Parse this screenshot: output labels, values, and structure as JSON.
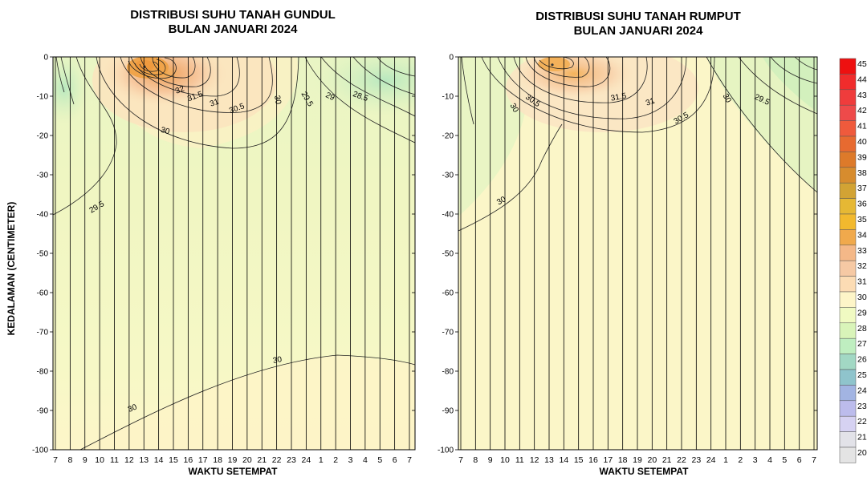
{
  "chart_data": [
    {
      "type": "heatmap",
      "title": "DISTRIBUSI SUHU TANAH GUNDUL",
      "subtitle": "BULAN JANUARI 2024",
      "xlabel": "WAKTU SETEMPAT",
      "ylabel": "KEDALAMAN (CENTIMETER)",
      "x_ticks": [
        "7",
        "8",
        "9",
        "10",
        "11",
        "12",
        "13",
        "14",
        "15",
        "16",
        "17",
        "18",
        "19",
        "20",
        "21",
        "22",
        "23",
        "24",
        "1",
        "2",
        "3",
        "4",
        "5",
        "6",
        "7"
      ],
      "y_ticks": [
        0,
        -10,
        -20,
        -30,
        -40,
        -50,
        -60,
        -70,
        -80,
        -90,
        -100
      ],
      "ylim": [
        -100,
        0
      ],
      "contour_labels": [
        "32",
        "31.5",
        "31",
        "30.5",
        "30",
        "30",
        "29.5",
        "29",
        "28.5",
        "29.5",
        "30",
        "30"
      ],
      "hotspot": {
        "hour": "13",
        "depth": -2.5,
        "value": 35
      }
    },
    {
      "type": "heatmap",
      "title": "DISTRIBUSI SUHU TANAH RUMPUT",
      "subtitle": "BULAN JANUARI 2024",
      "xlabel": "WAKTU SETEMPAT",
      "x_ticks": [
        "7",
        "8",
        "9",
        "10",
        "11",
        "12",
        "13",
        "14",
        "15",
        "16",
        "17",
        "18",
        "19",
        "20",
        "21",
        "22",
        "23",
        "24",
        "1",
        "2",
        "3",
        "4",
        "5",
        "6",
        "7"
      ],
      "y_ticks": [
        0,
        -10,
        -20,
        -30,
        -40,
        -50,
        -60,
        -70,
        -80,
        -90,
        -100
      ],
      "ylim": [
        -100,
        0
      ],
      "contour_labels": [
        "30",
        "30.5",
        "31.5",
        "31",
        "30.5",
        "30",
        "29.5",
        "30"
      ],
      "hotspot": {
        "hour": "13.5",
        "depth": -2,
        "value": 33.5
      }
    }
  ],
  "colorbar": {
    "ticks": [
      "45",
      "44",
      "43",
      "42",
      "41",
      "40",
      "39",
      "38",
      "37",
      "36",
      "35",
      "34",
      "33",
      "32",
      "31",
      "30",
      "29",
      "28",
      "27",
      "26",
      "25",
      "24",
      "23",
      "22",
      "21",
      "20"
    ],
    "colors": [
      "#ee1010",
      "#f02c2c",
      "#ef3c3c",
      "#ee4a4a",
      "#ef5a3c",
      "#e76a30",
      "#dd7a2a",
      "#d78c2e",
      "#d2a334",
      "#e6b834",
      "#f2b92e",
      "#f0a94c",
      "#f4b888",
      "#f6c9a4",
      "#fcdcb4",
      "#fdf5c8",
      "#f0fac2",
      "#d9f4b9",
      "#bfeec0",
      "#a2d8c4",
      "#8fc4cc",
      "#a2b4e2",
      "#bcbcec",
      "#d6d2f2",
      "#e2e2e8",
      "#e4e4e4"
    ]
  }
}
